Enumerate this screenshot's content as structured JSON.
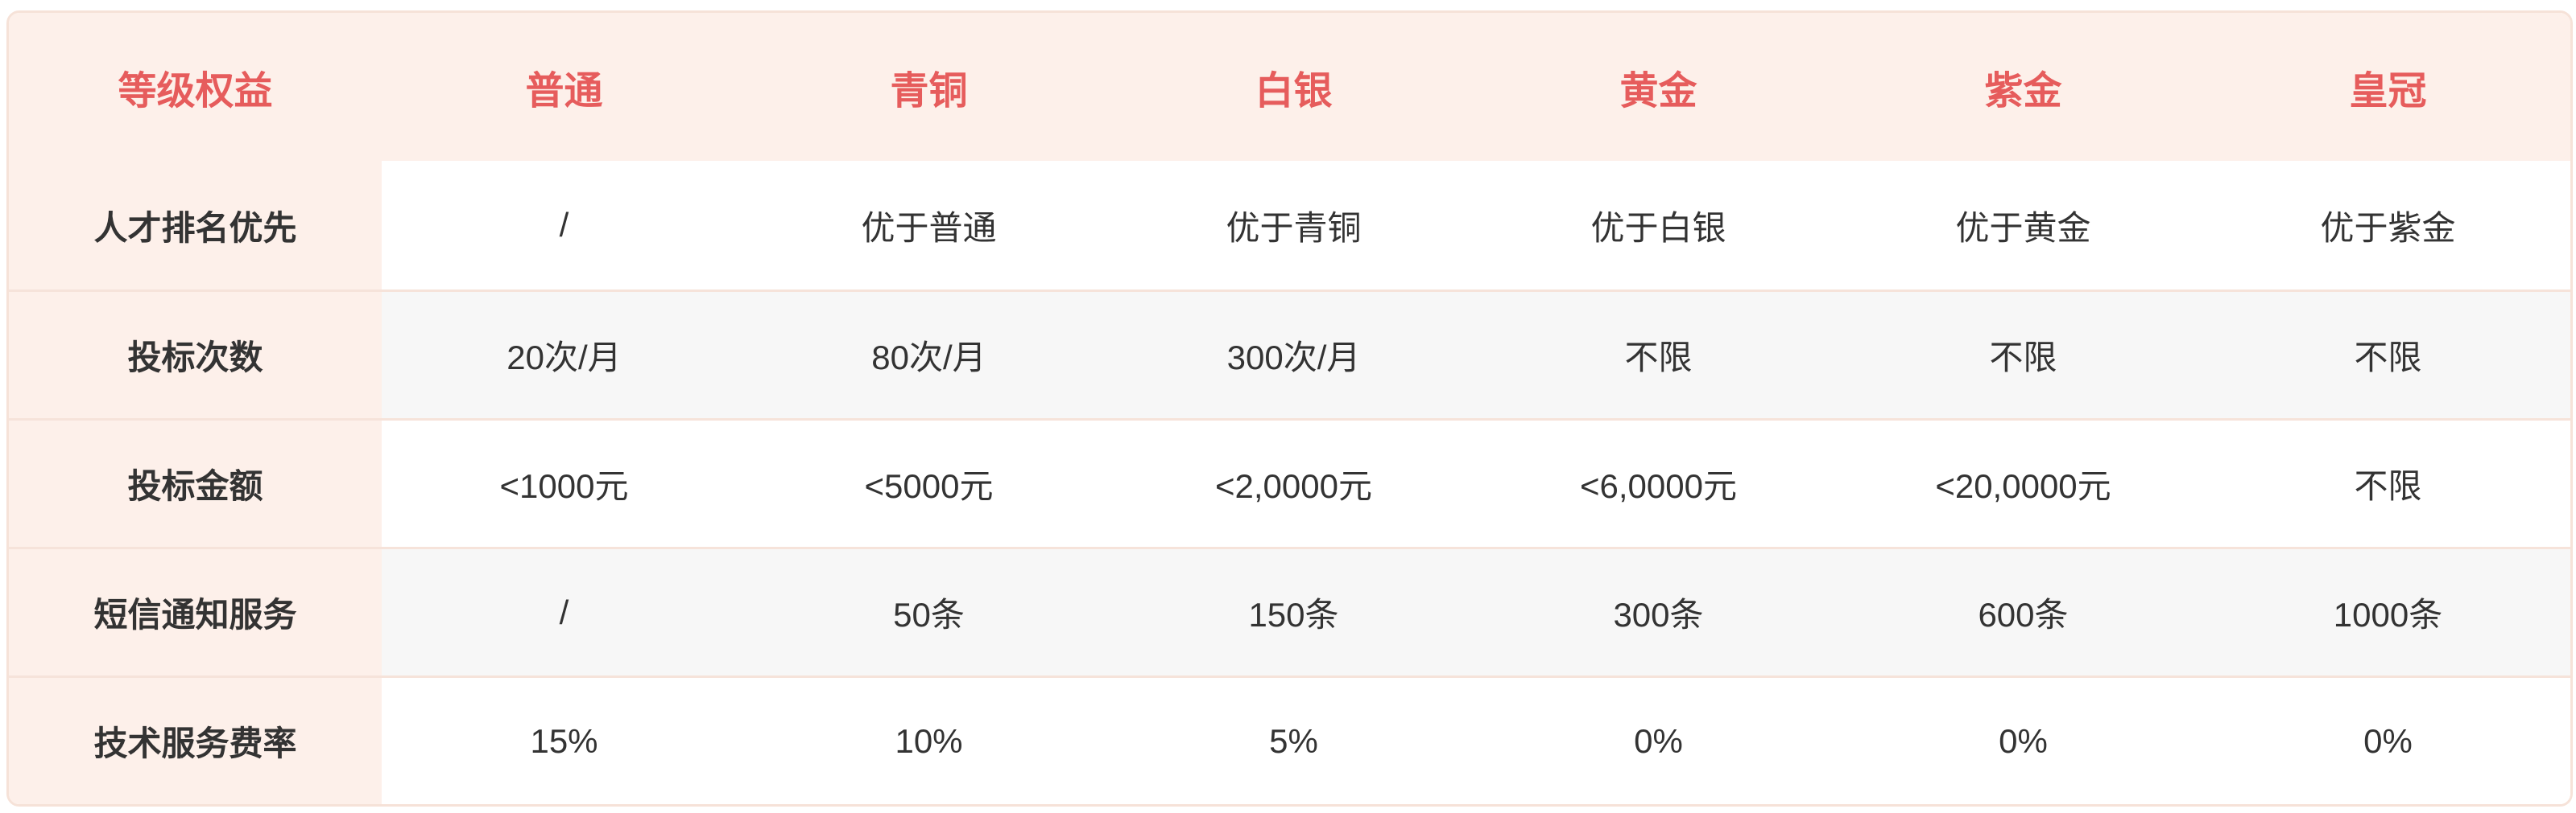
{
  "table": {
    "title_cell": "等级权益",
    "tiers": [
      "普通",
      "青铜",
      "白银",
      "黄金",
      "紫金",
      "皇冠"
    ],
    "rows": [
      {
        "label": "人才排名优先",
        "values": [
          "/",
          "优于普通",
          "优于青铜",
          "优于白银",
          "优于黄金",
          "优于紫金"
        ]
      },
      {
        "label": "投标次数",
        "values": [
          "20次/月",
          "80次/月",
          "300次/月",
          "不限",
          "不限",
          "不限"
        ]
      },
      {
        "label": "投标金额",
        "values": [
          "<1000元",
          "<5000元",
          "<2,0000元",
          "<6,0000元",
          "<20,0000元",
          "不限"
        ]
      },
      {
        "label": "短信通知服务",
        "values": [
          "/",
          "50条",
          "150条",
          "300条",
          "600条",
          "1000条"
        ]
      },
      {
        "label": "技术服务费率",
        "values": [
          "15%",
          "10%",
          "5%",
          "0%",
          "0%",
          "0%"
        ]
      }
    ],
    "colors": {
      "header_text": "#e65c5c",
      "header_bg": "#fdf0ea",
      "label_col_bg": "#fdf0ea",
      "row_alt_bg": "#f7f7f7",
      "row_bg": "#ffffff",
      "card_border": "#f6e2d8",
      "body_text": "#333333"
    }
  }
}
